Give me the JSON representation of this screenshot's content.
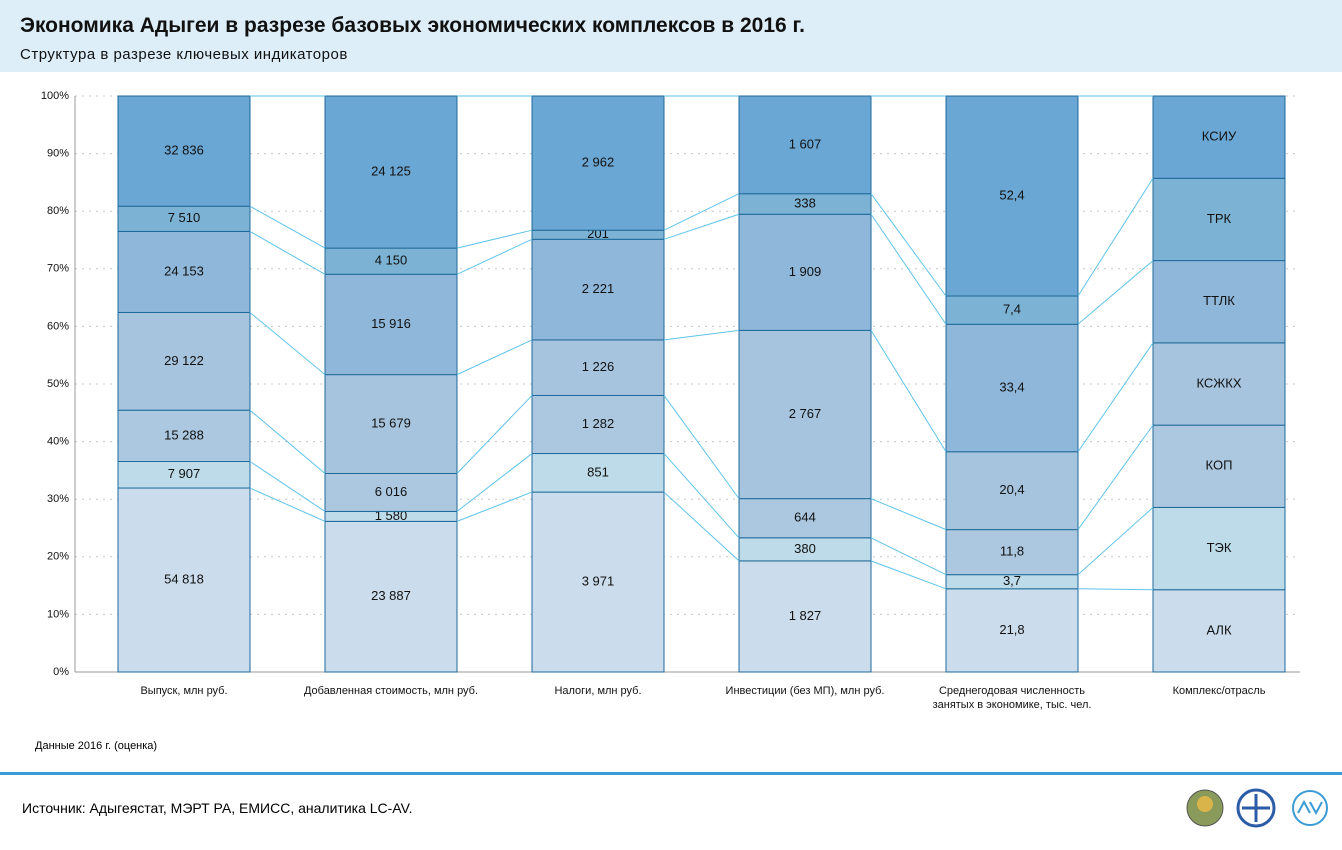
{
  "chart_data": {
    "type": "stacked_percent_bar",
    "title": "Экономика Адыгеи в разрезе базовых экономических комплексов в 2016 г.",
    "subtitle": "Структура в разрезе ключевых индикаторов",
    "categories": [
      "Выпуск, млн руб.",
      "Добавленная стоимость, млн руб.",
      "Налоги, млн руб.",
      "Инвестиции (без МП), млн руб.",
      "Среднегодовая численность занятых в экономике, тыс. чел."
    ],
    "legend_label": "Комплекс/отрасль",
    "series": [
      {
        "name": "АЛК",
        "color": "#cbdcec",
        "values": [
          54818,
          23887,
          3971,
          1827,
          21.8
        ],
        "value_labels": [
          "54 818",
          "23 887",
          "3 971",
          "1 827",
          "21,8"
        ]
      },
      {
        "name": "ТЭК",
        "color": "#bddbe9",
        "values": [
          7907,
          1580,
          851,
          380,
          3.7
        ],
        "value_labels": [
          "7 907",
          "1 580",
          "851",
          "380",
          "3,7"
        ]
      },
      {
        "name": "КОП",
        "color": "#abc8e0",
        "values": [
          15288,
          6016,
          1282,
          644,
          11.8
        ],
        "value_labels": [
          "15 288",
          "6 016",
          "1 282",
          "644",
          "11,8"
        ]
      },
      {
        "name": "КСЖКХ",
        "color": "#a6c4de",
        "values": [
          29122,
          15679,
          1226,
          2767,
          20.4
        ],
        "value_labels": [
          "29 122",
          "15 679",
          "1 226",
          "2 767",
          "20,4"
        ]
      },
      {
        "name": "ТТЛК",
        "color": "#8fb7da",
        "values": [
          24153,
          15916,
          2221,
          1909,
          33.4
        ],
        "value_labels": [
          "24 153",
          "15 916",
          "2 221",
          "1 909",
          "33,4"
        ]
      },
      {
        "name": "ТРК",
        "color": "#7cb3d4",
        "values": [
          7510,
          4150,
          201,
          338,
          7.4
        ],
        "value_labels": [
          "7 510",
          "4 150",
          "201",
          "338",
          "7,4"
        ]
      },
      {
        "name": "КСИУ",
        "color": "#6ba7d4",
        "values": [
          32836,
          24125,
          2962,
          1607,
          52.4
        ],
        "value_labels": [
          "32 836",
          "24 125",
          "2 962",
          "1 607",
          "52,4"
        ]
      }
    ],
    "ylim": [
      0,
      100
    ],
    "yticks": [
      {
        "value": 0,
        "label": "0%"
      },
      {
        "value": 10,
        "label": "10%"
      },
      {
        "value": 20,
        "label": "20%"
      },
      {
        "value": 30,
        "label": "30%"
      },
      {
        "value": 40,
        "label": "40%"
      },
      {
        "value": 50,
        "label": "50%"
      },
      {
        "value": 60,
        "label": "60%"
      },
      {
        "value": 70,
        "label": "70%"
      },
      {
        "value": 80,
        "label": "80%"
      },
      {
        "value": 90,
        "label": "90%"
      },
      {
        "value": 100,
        "label": "100%"
      }
    ],
    "grid": true,
    "note": "Данные 2016 г. (оценка)",
    "source": "Источник: Адыгеястат, МЭРТ РА, ЕМИСС, аналитика LC-AV."
  }
}
